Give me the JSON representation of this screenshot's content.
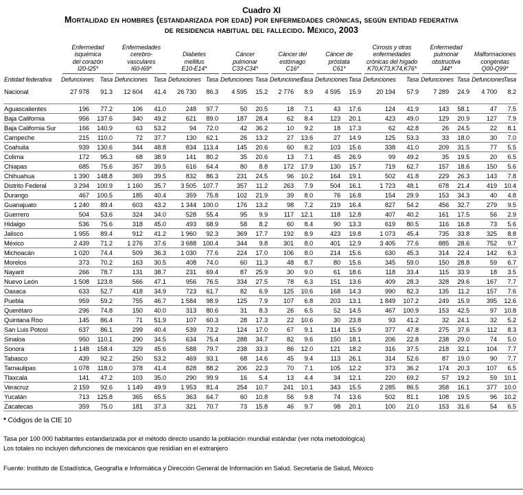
{
  "title": "Cuadro XI",
  "subtitle_line1": "Mortalidad en hombres (estandarizada por edad) por enfermedades crónicas, según entidad federativa",
  "subtitle_line2": "de residencia habitual del fallecido. México, 2003",
  "table": {
    "row_header": "Entidad federativa",
    "sub_headers": [
      "Defunciones",
      "Tasa"
    ],
    "col_groups": [
      {
        "name_lines": [
          "Enfermedad",
          "isquémica",
          "del corazón"
        ],
        "code": "I20-I25*"
      },
      {
        "name_lines": [
          "Enfermedades",
          "cerebro-",
          "vasculares"
        ],
        "code": "I60-I69*"
      },
      {
        "name_lines": [
          "Diabetes",
          "mellitus"
        ],
        "code": "E10-E14*"
      },
      {
        "name_lines": [
          "Cáncer",
          "pulmonar"
        ],
        "code": "C33-C34*"
      },
      {
        "name_lines": [
          "Cáncer del",
          "estómago"
        ],
        "code": "C16*"
      },
      {
        "name_lines": [
          "Cáncer de",
          "próstata"
        ],
        "code": "C61*"
      },
      {
        "name_lines": [
          "Cirrosis y otras",
          "enfermedades",
          "crónicas del hígado"
        ],
        "code": "K70,K73,K74,K76*"
      },
      {
        "name_lines": [
          "Enfermedad",
          "pulmonar",
          "obstructiva"
        ],
        "code": "J44*"
      },
      {
        "name_lines": [
          "Malformaciones",
          "congénitas"
        ],
        "code": "Q00-Q99*"
      }
    ],
    "national": {
      "label": "Nacional",
      "values": [
        "27 978",
        "91.3",
        "12 604",
        "41.4",
        "26 730",
        "86.3",
        "4 595",
        "15.2",
        "2 776",
        "8.9",
        "4 595",
        "15.9",
        "20 194",
        "57.9",
        "7 289",
        "24.9",
        "4 700",
        "8.2"
      ]
    },
    "rows": [
      {
        "label": "Aguascalientes",
        "values": [
          "196",
          "77.2",
          "106",
          "41.0",
          "248",
          "97.7",
          "50",
          "20.5",
          "18",
          "7.1",
          "43",
          "17.6",
          "124",
          "41.9",
          "143",
          "58.1",
          "47",
          "7.5"
        ]
      },
      {
        "label": "Baja California",
        "values": [
          "956",
          "137.6",
          "340",
          "49.2",
          "621",
          "89.0",
          "187",
          "28.4",
          "62",
          "8.4",
          "123",
          "20.1",
          "423",
          "49.0",
          "129",
          "20.9",
          "127",
          "7.9"
        ]
      },
      {
        "label": "Baja California Sur",
        "values": [
          "166",
          "140.9",
          "63",
          "53.2",
          "94",
          "72.0",
          "42",
          "36.2",
          "10",
          "9.2",
          "18",
          "17.3",
          "62",
          "42.8",
          "26",
          "24.5",
          "22",
          "8.1"
        ]
      },
      {
        "label": "Campeche",
        "values": [
          "215",
          "110.0",
          "72",
          "37.7",
          "130",
          "62.1",
          "26",
          "13.2",
          "27",
          "13.6",
          "27",
          "14.9",
          "125",
          "53.3",
          "33",
          "18.0",
          "30",
          "7.0"
        ]
      },
      {
        "label": "Coahuila",
        "values": [
          "939",
          "130.6",
          "344",
          "48.8",
          "834",
          "113.4",
          "145",
          "20.6",
          "60",
          "8.2",
          "103",
          "15.6",
          "338",
          "41.0",
          "209",
          "31.5",
          "77",
          "5.5"
        ]
      },
      {
        "label": "Colima",
        "values": [
          "172",
          "95.3",
          "68",
          "38.9",
          "141",
          "80.2",
          "35",
          "20.6",
          "13",
          "7.1",
          "45",
          "26.9",
          "99",
          "49.2",
          "35",
          "19.5",
          "20",
          "6.5"
        ]
      },
      {
        "label": "Chiapas",
        "values": [
          "685",
          "75.6",
          "357",
          "39.5",
          "616",
          "64.4",
          "80",
          "8.8",
          "172",
          "17.9",
          "130",
          "15.7",
          "719",
          "62.7",
          "157",
          "18.6",
          "150",
          "5.6"
        ]
      },
      {
        "label": "Chihuahua",
        "values": [
          "1 390",
          "148.8",
          "369",
          "39.5",
          "832",
          "86.3",
          "231",
          "24.5",
          "96",
          "10.2",
          "164",
          "19.1",
          "502",
          "41.8",
          "229",
          "26.3",
          "143",
          "7.8"
        ]
      },
      {
        "label": "Distrito Federal",
        "values": [
          "3 294",
          "100.9",
          "1 160",
          "35.7",
          "3 505",
          "107.7",
          "357",
          "11.2",
          "263",
          "7.9",
          "504",
          "16.1",
          "1 723",
          "48.1",
          "678",
          "21.4",
          "419",
          "10.4"
        ]
      },
      {
        "label": "Durango",
        "values": [
          "467",
          "100.5",
          "185",
          "40.4",
          "359",
          "75.8",
          "102",
          "21.9",
          "39",
          "8.0",
          "76",
          "16.8",
          "154",
          "29.9",
          "153",
          "34.3",
          "40",
          "4.8"
        ]
      },
      {
        "label": "Guanajuato",
        "values": [
          "1 240",
          "89.4",
          "603",
          "43.2",
          "1 344",
          "100.0",
          "176",
          "13.2",
          "98",
          "7.2",
          "219",
          "16.4",
          "827",
          "54.2",
          "456",
          "32.7",
          "279",
          "9.5"
        ]
      },
      {
        "label": "Guerrero",
        "values": [
          "504",
          "53.6",
          "324",
          "34.0",
          "528",
          "55.4",
          "95",
          "9.9",
          "117",
          "12.1",
          "118",
          "12.8",
          "407",
          "40.2",
          "161",
          "17.5",
          "56",
          "2.9"
        ]
      },
      {
        "label": "Hidalgo",
        "values": [
          "536",
          "75.6",
          "318",
          "45.0",
          "493",
          "68.9",
          "58",
          "8.2",
          "60",
          "8.4",
          "90",
          "13.3",
          "619",
          "80.5",
          "116",
          "16.8",
          "73",
          "5.6"
        ]
      },
      {
        "label": "Jalisco",
        "values": [
          "1 955",
          "89.4",
          "912",
          "41.2",
          "1 960",
          "92.3",
          "369",
          "17.7",
          "192",
          "8.9",
          "423",
          "19.8",
          "1 073",
          "45.4",
          "735",
          "33.8",
          "325",
          "8.8"
        ]
      },
      {
        "label": "México",
        "values": [
          "2 439",
          "71.2",
          "1 276",
          "37.6",
          "3 688",
          "100.4",
          "344",
          "9.8",
          "301",
          "8.0",
          "401",
          "12.9",
          "3 405",
          "77.6",
          "885",
          "28.6",
          "752",
          "9.7"
        ]
      },
      {
        "label": "Michoacán",
        "values": [
          "1 020",
          "74.4",
          "509",
          "36.3",
          "1 030",
          "77.6",
          "224",
          "17.0",
          "106",
          "8.0",
          "214",
          "15.6",
          "630",
          "45.3",
          "314",
          "22.4",
          "142",
          "6.3"
        ]
      },
      {
        "label": "Morelos",
        "values": [
          "373",
          "70.2",
          "163",
          "30.5",
          "408",
          "74.0",
          "60",
          "11.3",
          "48",
          "8.7",
          "80",
          "15.6",
          "345",
          "59.0",
          "150",
          "28.8",
          "59",
          "6.7"
        ]
      },
      {
        "label": "Nayarit",
        "values": [
          "266",
          "78.7",
          "131",
          "38.7",
          "231",
          "69.4",
          "87",
          "25.9",
          "30",
          "9.0",
          "61",
          "18.6",
          "118",
          "33.4",
          "115",
          "33.9",
          "18",
          "3.5"
        ]
      },
      {
        "label": "Nuevo León",
        "values": [
          "1 508",
          "123.8",
          "566",
          "47.1",
          "956",
          "76.5",
          "334",
          "27.5",
          "78",
          "6.3",
          "151",
          "13.6",
          "409",
          "28.3",
          "328",
          "29.6",
          "167",
          "7.7"
        ]
      },
      {
        "label": "Oaxaca",
        "values": [
          "633",
          "52.7",
          "418",
          "34.9",
          "723",
          "61.7",
          "82",
          "6.9",
          "125",
          "10.6",
          "168",
          "14.3",
          "990",
          "82.3",
          "135",
          "11.2",
          "157",
          "7.6"
        ]
      },
      {
        "label": "Puebla",
        "values": [
          "959",
          "59.2",
          "755",
          "46.7",
          "1 584",
          "98.9",
          "125",
          "7.9",
          "107",
          "6.8",
          "203",
          "13.1",
          "1 849",
          "107.2",
          "249",
          "15.9",
          "395",
          "12.6"
        ]
      },
      {
        "label": "Querétaro",
        "values": [
          "296",
          "74.8",
          "150",
          "40.0",
          "313",
          "80.6",
          "31",
          "8.3",
          "26",
          "6.5",
          "52",
          "14.5",
          "467",
          "100.9",
          "153",
          "42.5",
          "97",
          "10.8"
        ]
      },
      {
        "label": "Quintana Roo",
        "values": [
          "145",
          "86.4",
          "71",
          "51.9",
          "107",
          "60.3",
          "28",
          "17.3",
          "22",
          "10.6",
          "30",
          "23.8",
          "93",
          "41.2",
          "32",
          "24.1",
          "32",
          "5.2"
        ]
      },
      {
        "label": "San Luis Potosí",
        "values": [
          "637",
          "86.1",
          "299",
          "40.4",
          "539",
          "73.2",
          "124",
          "17.0",
          "67",
          "9.1",
          "114",
          "15.9",
          "377",
          "47.8",
          "275",
          "37.6",
          "112",
          "8.3"
        ]
      },
      {
        "label": "Sinaloa",
        "values": [
          "950",
          "110.1",
          "290",
          "34.5",
          "634",
          "75.4",
          "288",
          "34.7",
          "82",
          "9.6",
          "150",
          "18.1",
          "206",
          "22.8",
          "238",
          "29.0",
          "74",
          "5.0"
        ]
      },
      {
        "label": "Sonora",
        "values": [
          "1 148",
          "158.4",
          "329",
          "45.6",
          "588",
          "79.7",
          "238",
          "33.3",
          "86",
          "12.0",
          "121",
          "18.2",
          "316",
          "37.5",
          "218",
          "32.1",
          "104",
          "7.7"
        ]
      },
      {
        "label": "Tabasco",
        "values": [
          "439",
          "92.2",
          "250",
          "53.2",
          "469",
          "93.1",
          "68",
          "14.6",
          "45",
          "9.4",
          "113",
          "26.1",
          "314",
          "52.6",
          "87",
          "19.0",
          "90",
          "7.7"
        ]
      },
      {
        "label": "Tamaulipas",
        "values": [
          "1 078",
          "118.0",
          "378",
          "41.4",
          "828",
          "88.2",
          "206",
          "22.3",
          "70",
          "7.1",
          "105",
          "12.2",
          "373",
          "36.2",
          "174",
          "20.3",
          "107",
          "6.5"
        ]
      },
      {
        "label": "Tlaxcala",
        "values": [
          "141",
          "47.2",
          "103",
          "35.0",
          "290",
          "99.9",
          "16",
          "5.4",
          "13",
          "4.4",
          "34",
          "12.1",
          "220",
          "69.2",
          "57",
          "19.2",
          "59",
          "10.1"
        ]
      },
      {
        "label": "Veracruz",
        "values": [
          "2 159",
          "92.6",
          "1 149",
          "49.9",
          "1 953",
          "81.4",
          "254",
          "10.7",
          "241",
          "10.1",
          "343",
          "15.5",
          "2 285",
          "86.5",
          "358",
          "16.1",
          "377",
          "10.0"
        ]
      },
      {
        "label": "Yucatán",
        "values": [
          "713",
          "125.8",
          "365",
          "65.5",
          "363",
          "64.7",
          "60",
          "10.8",
          "56",
          "9.8",
          "74",
          "13.6",
          "502",
          "81.1",
          "108",
          "19.5",
          "96",
          "10.2"
        ]
      },
      {
        "label": "Zacatecas",
        "values": [
          "359",
          "75.0",
          "181",
          "37.3",
          "321",
          "70.7",
          "73",
          "15.8",
          "46",
          "9.7",
          "98",
          "20.1",
          "100",
          "21.0",
          "153",
          "31.6",
          "54",
          "6.5"
        ]
      }
    ]
  },
  "footnotes": {
    "codes_star": "*",
    "codes": "Códigos de la CIE 10",
    "rate": "Tasa por 100 000 habitantes estandarizada por el método directo usando la población mundial estándar (ver nota metodológica)",
    "totals": "Los totales no incluyen defunciones de mexicanos que residían en el extranjero",
    "source": "Fuente: Instituto de Estadística, Geografía e Informática y Dirección General de Información en Salud. Secretaría de Salud, México"
  }
}
